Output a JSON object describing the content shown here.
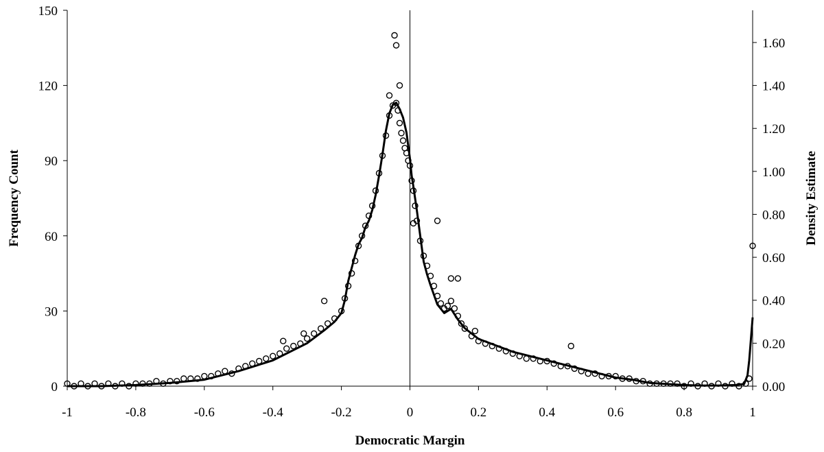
{
  "chart_data": {
    "type": "scatter",
    "xlabel": "Democratic Margin",
    "ylabel": "Frequency Count",
    "y2label": "Density Estimate",
    "xlim": [
      -1,
      1
    ],
    "ylim": [
      0,
      150
    ],
    "y2lim": [
      0,
      1.75
    ],
    "x_ticks": [
      "-1",
      "-0.8",
      "-0.6",
      "-0.4",
      "-0.2",
      "0",
      "0.2",
      "0.4",
      "0.6",
      "0.8",
      "1"
    ],
    "y_ticks": [
      "0",
      "30",
      "60",
      "90",
      "120",
      "150"
    ],
    "y2_ticks": [
      "0.00",
      "0.20",
      "0.40",
      "0.60",
      "0.80",
      "1.00",
      "1.20",
      "1.40",
      "1.60"
    ],
    "vertical_reference_line_x": 0,
    "series": [
      {
        "kind": "scatter",
        "x": [
          -1.0,
          -0.98,
          -0.96,
          -0.94,
          -0.92,
          -0.9,
          -0.88,
          -0.86,
          -0.84,
          -0.82,
          -0.8,
          -0.78,
          -0.76,
          -0.74,
          -0.72,
          -0.7,
          -0.68,
          -0.66,
          -0.64,
          -0.62,
          -0.6,
          -0.58,
          -0.56,
          -0.54,
          -0.52,
          -0.5,
          -0.48,
          -0.46,
          -0.44,
          -0.42,
          -0.4,
          -0.38,
          -0.36,
          -0.34,
          -0.32,
          -0.3,
          -0.28,
          -0.26,
          -0.24,
          -0.22,
          -0.2,
          -0.19,
          -0.18,
          -0.17,
          -0.16,
          -0.15,
          -0.14,
          -0.13,
          -0.12,
          -0.11,
          -0.1,
          -0.09,
          -0.08,
          -0.07,
          -0.06,
          -0.05,
          -0.04,
          -0.035,
          -0.03,
          -0.025,
          -0.02,
          -0.015,
          -0.01,
          -0.005,
          0.0,
          0.005,
          0.01,
          0.015,
          0.02,
          0.03,
          0.04,
          0.05,
          0.06,
          0.07,
          0.08,
          0.09,
          0.1,
          0.11,
          0.12,
          0.13,
          0.14,
          0.15,
          0.16,
          0.18,
          0.2,
          0.22,
          0.24,
          0.26,
          0.28,
          0.3,
          0.32,
          0.34,
          0.36,
          0.38,
          0.4,
          0.42,
          0.44,
          0.46,
          0.48,
          0.5,
          0.52,
          0.54,
          0.56,
          0.58,
          0.6,
          0.62,
          0.64,
          0.66,
          0.68,
          0.7,
          0.72,
          0.74,
          0.76,
          0.78,
          0.8,
          0.82,
          0.84,
          0.86,
          0.88,
          0.9,
          0.92,
          0.94,
          0.96,
          0.98,
          0.99,
          1.0,
          -0.37,
          -0.31,
          -0.25,
          -0.045,
          -0.04,
          -0.03,
          0.08,
          0.12,
          0.14,
          0.47,
          0.19,
          -0.06,
          0.01
        ],
        "y": [
          1,
          0,
          1,
          0,
          1,
          0,
          1,
          0,
          1,
          0,
          1,
          1,
          1,
          2,
          1,
          2,
          2,
          3,
          3,
          3,
          4,
          4,
          5,
          6,
          5,
          7,
          8,
          9,
          10,
          11,
          12,
          13,
          15,
          16,
          17,
          19,
          21,
          23,
          25,
          27,
          30,
          35,
          40,
          45,
          50,
          56,
          60,
          64,
          68,
          72,
          78,
          85,
          92,
          100,
          108,
          112,
          113,
          110,
          105,
          101,
          98,
          95,
          93,
          90,
          88,
          82,
          78,
          72,
          66,
          58,
          52,
          48,
          44,
          40,
          36,
          33,
          31,
          32,
          34,
          31,
          28,
          25,
          23,
          20,
          18,
          17,
          16,
          15,
          14,
          13,
          12,
          11,
          11,
          10,
          10,
          9,
          8,
          8,
          7,
          6,
          5,
          5,
          4,
          4,
          4,
          3,
          3,
          2,
          2,
          1,
          1,
          1,
          1,
          1,
          0,
          1,
          0,
          1,
          0,
          1,
          0,
          1,
          0,
          1,
          3,
          56,
          18,
          21,
          34,
          140,
          136,
          120,
          66,
          43,
          43,
          16,
          22,
          116,
          65
        ]
      },
      {
        "kind": "line",
        "x": [
          -1.0,
          -0.9,
          -0.8,
          -0.7,
          -0.6,
          -0.5,
          -0.45,
          -0.4,
          -0.35,
          -0.3,
          -0.25,
          -0.22,
          -0.2,
          -0.19,
          -0.18,
          -0.17,
          -0.16,
          -0.15,
          -0.14,
          -0.13,
          -0.12,
          -0.11,
          -0.1,
          -0.09,
          -0.08,
          -0.07,
          -0.06,
          -0.05,
          -0.04,
          -0.03,
          -0.02,
          -0.01,
          0.0,
          0.005,
          0.01,
          0.02,
          0.03,
          0.04,
          0.05,
          0.06,
          0.08,
          0.1,
          0.12,
          0.14,
          0.16,
          0.2,
          0.25,
          0.3,
          0.35,
          0.4,
          0.45,
          0.5,
          0.55,
          0.6,
          0.65,
          0.7,
          0.75,
          0.8,
          0.85,
          0.9,
          0.95,
          0.975,
          0.985,
          0.99,
          0.995,
          1.0
        ],
        "y": [
          0.0,
          0.0,
          0.005,
          0.015,
          0.03,
          0.07,
          0.095,
          0.12,
          0.16,
          0.2,
          0.26,
          0.3,
          0.34,
          0.4,
          0.49,
          0.55,
          0.61,
          0.66,
          0.69,
          0.74,
          0.77,
          0.82,
          0.89,
          0.98,
          1.08,
          1.19,
          1.27,
          1.31,
          1.32,
          1.29,
          1.25,
          1.18,
          1.06,
          0.98,
          0.93,
          0.82,
          0.7,
          0.58,
          0.52,
          0.47,
          0.38,
          0.34,
          0.36,
          0.31,
          0.27,
          0.22,
          0.19,
          0.16,
          0.14,
          0.12,
          0.1,
          0.08,
          0.06,
          0.04,
          0.03,
          0.015,
          0.01,
          0.005,
          0.003,
          0.003,
          0.005,
          0.01,
          0.05,
          0.12,
          0.22,
          0.32
        ],
        "axis": "y2"
      }
    ]
  }
}
